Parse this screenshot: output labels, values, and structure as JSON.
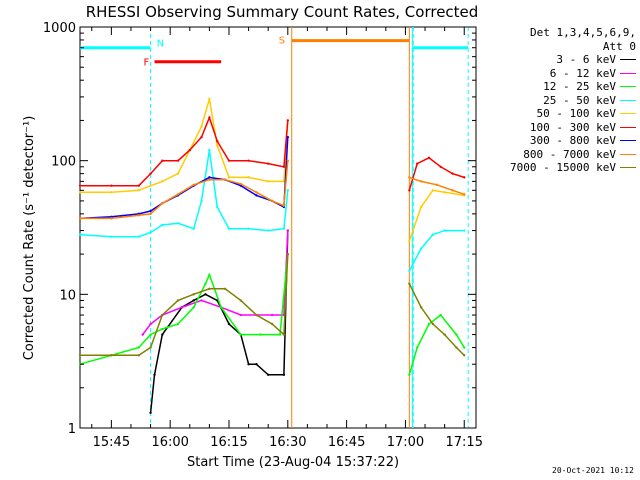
{
  "chart_data": {
    "type": "line",
    "title": "RHESSI Observing Summary Count Rates, Corrected",
    "xlabel": "Start Time (23-Aug-04 15:37:22)",
    "ylabel": "Corrected Count Rate (s⁻¹ detector⁻¹)",
    "y_scale": "log",
    "ylim": [
      1,
      1000
    ],
    "xlim": [
      "15:37",
      "17:18"
    ],
    "x_tick_labels": [
      "15:45",
      "16:00",
      "16:15",
      "16:30",
      "16:45",
      "17:00",
      "17:15"
    ],
    "y_tick_labels": [
      "1",
      "10",
      "100",
      "1000"
    ],
    "grid": false,
    "legend_position": "right",
    "legend_header": [
      "Det 1,3,4,5,6,9,",
      "Att 0"
    ],
    "series": [
      {
        "name": "3 - 6 keV",
        "color": "#000000",
        "x": [
          "15:37",
          "15:55",
          "15:56",
          "15:58",
          "16:03",
          "16:06",
          "16:09",
          "16:12",
          "16:15",
          "16:18",
          "16:20",
          "16:22",
          "16:25",
          "16:29",
          "16:30"
        ],
        "y": [
          null,
          1.3,
          2.5,
          5,
          8,
          9,
          10,
          9,
          6,
          5,
          3,
          3,
          2.5,
          2.5,
          30
        ]
      },
      {
        "name": "6 - 12 keV",
        "color": "#ff00ff",
        "x": [
          "15:53",
          "15:55",
          "15:58",
          "16:03",
          "16:08",
          "16:13",
          "16:18",
          "16:22",
          "16:26",
          "16:29",
          "16:30"
        ],
        "y": [
          5,
          6,
          7,
          8,
          9,
          8,
          7,
          7,
          7,
          7,
          30
        ]
      },
      {
        "name": "12 - 25 keV",
        "color": "#00ff00",
        "x": [
          "15:37",
          "15:45",
          "15:52",
          "15:55",
          "15:58",
          "16:02",
          "16:06",
          "16:09",
          "16:10",
          "16:13",
          "16:18",
          "16:23",
          "16:28",
          "16:30",
          "17:01",
          "17:03",
          "17:06",
          "17:09",
          "17:13",
          "17:15"
        ],
        "y": [
          3,
          3.5,
          4,
          5,
          5.5,
          6,
          8,
          12,
          14,
          8,
          5,
          5,
          5,
          20,
          2.5,
          4,
          6,
          7,
          5,
          4
        ]
      },
      {
        "name": "25 - 50 keV",
        "color": "#00ffff",
        "x": [
          "15:37",
          "15:45",
          "15:52",
          "15:55",
          "15:58",
          "16:02",
          "16:06",
          "16:08",
          "16:10",
          "16:12",
          "16:15",
          "16:20",
          "16:25",
          "16:29",
          "16:30",
          "17:01",
          "17:04",
          "17:07",
          "17:10",
          "17:15"
        ],
        "y": [
          28,
          27,
          27,
          29,
          33,
          34,
          31,
          50,
          120,
          45,
          31,
          31,
          30,
          31,
          60,
          15,
          22,
          28,
          30,
          30
        ]
      },
      {
        "name": "50 - 100 keV",
        "color": "#ffcc00",
        "x": [
          "15:37",
          "15:45",
          "15:52",
          "15:55",
          "15:58",
          "16:02",
          "16:05",
          "16:08",
          "16:10",
          "16:12",
          "16:15",
          "16:20",
          "16:25",
          "16:29",
          "16:30",
          "17:01",
          "17:04",
          "17:07",
          "17:10",
          "17:15"
        ],
        "y": [
          58,
          58,
          60,
          65,
          70,
          80,
          120,
          180,
          290,
          130,
          75,
          75,
          70,
          70,
          200,
          25,
          45,
          60,
          58,
          55
        ]
      },
      {
        "name": "100 - 300 keV",
        "color": "#ff0000",
        "x": [
          "15:37",
          "15:45",
          "15:52",
          "15:55",
          "15:58",
          "16:02",
          "16:05",
          "16:08",
          "16:10",
          "16:12",
          "16:15",
          "16:20",
          "16:25",
          "16:29",
          "16:30",
          "17:01",
          "17:03",
          "17:06",
          "17:09",
          "17:12",
          "17:15"
        ],
        "y": [
          65,
          65,
          65,
          80,
          100,
          100,
          120,
          150,
          210,
          140,
          100,
          100,
          95,
          90,
          200,
          60,
          95,
          105,
          90,
          80,
          75
        ]
      },
      {
        "name": "300 - 800 keV",
        "color": "#0000ff",
        "x": [
          "15:37",
          "15:45",
          "15:52",
          "15:55",
          "15:58",
          "16:02",
          "16:06",
          "16:10",
          "16:14",
          "16:18",
          "16:22",
          "16:26",
          "16:29",
          "16:30"
        ],
        "y": [
          37,
          38,
          40,
          42,
          48,
          55,
          65,
          75,
          72,
          65,
          55,
          50,
          45,
          150
        ]
      },
      {
        "name": "800 - 7000 keV",
        "color": "#ff8000",
        "x": [
          "15:37",
          "15:45",
          "15:52",
          "15:55",
          "15:58",
          "16:02",
          "16:06",
          "16:10",
          "16:14",
          "16:18",
          "16:22",
          "16:26",
          "16:29",
          "16:30",
          "17:01",
          "17:04",
          "17:08",
          "17:12",
          "17:15"
        ],
        "y": [
          37,
          37,
          39,
          40,
          48,
          56,
          66,
          72,
          72,
          67,
          58,
          50,
          46,
          100,
          75,
          70,
          66,
          60,
          56
        ]
      },
      {
        "name": "7000 - 15000 keV",
        "color": "#808000",
        "x": [
          "15:37",
          "15:45",
          "15:52",
          "15:55",
          "15:58",
          "16:02",
          "16:06",
          "16:10",
          "16:14",
          "16:18",
          "16:22",
          "16:26",
          "16:29",
          "16:30",
          "17:01",
          "17:04",
          "17:07",
          "17:10",
          "17:13",
          "17:15"
        ],
        "y": [
          3.5,
          3.5,
          3.5,
          4,
          7,
          9,
          10,
          11,
          11,
          9,
          7,
          6,
          5,
          20,
          12,
          8,
          6,
          5,
          4,
          3.5
        ]
      }
    ],
    "annotations": [
      {
        "label": "N",
        "color": "#00ffff",
        "type": "night",
        "segments": [
          [
            "15:37",
            "15:55"
          ],
          [
            "17:02",
            "17:16"
          ]
        ],
        "y": 700
      },
      {
        "label": "F",
        "color": "#ff0000",
        "type": "flare",
        "segments": [
          [
            "15:56",
            "16:13"
          ]
        ],
        "y": 550
      },
      {
        "label": "S",
        "color": "#ff8000",
        "type": "saa",
        "segments": [
          [
            "16:31",
            "17:01"
          ]
        ],
        "y": 790
      }
    ]
  },
  "legend_header": [
    "Det 1,3,4,5,6,9,",
    "Att 0"
  ],
  "datestamp": "20-Oct-2021 10:12"
}
